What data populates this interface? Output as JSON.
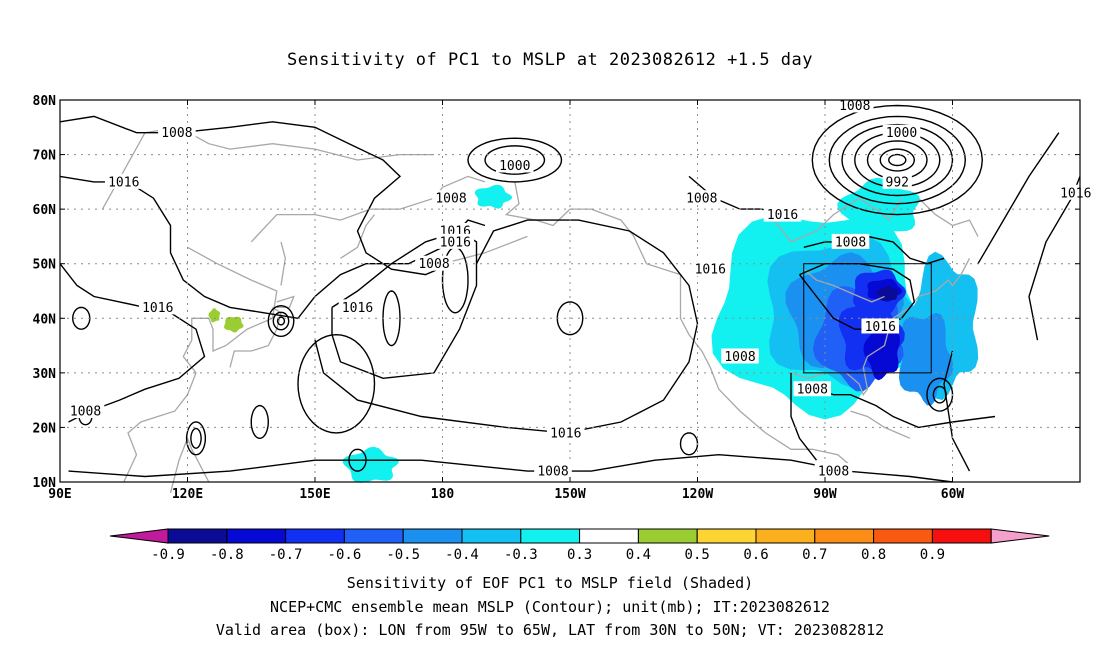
{
  "title": "Sensitivity of PC1 to MSLP at 2023082612 +1.5 day",
  "map": {
    "lon_range": [
      "90E",
      "30W"
    ],
    "lat_range": [
      "10N",
      "80N"
    ],
    "lat_ticks": [
      {
        "label": "80N",
        "value": 80
      },
      {
        "label": "70N",
        "value": 70
      },
      {
        "label": "60N",
        "value": 60
      },
      {
        "label": "50N",
        "value": 50
      },
      {
        "label": "40N",
        "value": 40
      },
      {
        "label": "30N",
        "value": 30
      },
      {
        "label": "20N",
        "value": 20
      },
      {
        "label": "10N",
        "value": 10
      }
    ],
    "lon_ticks": [
      {
        "label": "90E",
        "value": 90
      },
      {
        "label": "120E",
        "value": 120
      },
      {
        "label": "150E",
        "value": 150
      },
      {
        "label": "180",
        "value": 180
      },
      {
        "label": "150W",
        "value": 210
      },
      {
        "label": "120W",
        "value": 240
      },
      {
        "label": "90W",
        "value": 270
      },
      {
        "label": "60W",
        "value": 300
      }
    ],
    "contour_labels": [
      {
        "text": "1008",
        "lon": 117.5,
        "lat": 74
      },
      {
        "text": "1016",
        "lon": 105,
        "lat": 65
      },
      {
        "text": "1016",
        "lon": 113,
        "lat": 42
      },
      {
        "text": "1008",
        "lon": 96,
        "lat": 23
      },
      {
        "text": "1000",
        "lon": 197,
        "lat": 68
      },
      {
        "text": "1008",
        "lon": 182,
        "lat": 62
      },
      {
        "text": "1008",
        "lon": 178,
        "lat": 50
      },
      {
        "text": "1016",
        "lon": 183,
        "lat": 56
      },
      {
        "text": "1016",
        "lon": 183,
        "lat": 54
      },
      {
        "text": "1016",
        "lon": 160,
        "lat": 42
      },
      {
        "text": "1008",
        "lon": 241,
        "lat": 62
      },
      {
        "text": "1016",
        "lon": 260,
        "lat": 59
      },
      {
        "text": "1016",
        "lon": 243,
        "lat": 49
      },
      {
        "text": "1008",
        "lon": 250,
        "lat": 33
      },
      {
        "text": "1016",
        "lon": 209,
        "lat": 19
      },
      {
        "text": "1008",
        "lon": 206,
        "lat": 12
      },
      {
        "text": "1008",
        "lon": 277,
        "lat": 79
      },
      {
        "text": "1000",
        "lon": 288,
        "lat": 74
      },
      {
        "text": "992",
        "lon": 287,
        "lat": 65
      },
      {
        "text": "1016",
        "lon": 329,
        "lat": 63
      },
      {
        "text": "1008",
        "lon": 276,
        "lat": 54
      },
      {
        "text": "1016",
        "lon": 283,
        "lat": 38.5
      },
      {
        "text": "1008",
        "lon": 267,
        "lat": 27
      },
      {
        "text": "1008",
        "lon": 272,
        "lat": 12
      }
    ],
    "valid_box": {
      "lon_from": 265,
      "lon_to": 295,
      "lat_from": 30,
      "lat_to": 50
    }
  },
  "colorbar": {
    "labels": [
      "-0.9",
      "-0.8",
      "-0.7",
      "-0.6",
      "-0.5",
      "-0.4",
      "-0.3",
      "0.3",
      "0.4",
      "0.5",
      "0.6",
      "0.7",
      "0.8",
      "0.9"
    ],
    "colors": [
      "#0b0c96",
      "#0608d4",
      "#1230f2",
      "#2060f6",
      "#1a90f0",
      "#14bff2",
      "#12f0f0",
      "#ffffff",
      "#9acd32",
      "#fcd534",
      "#fbb01e",
      "#fb8c14",
      "#fa5a0f",
      "#f50f0f"
    ],
    "end_low_color": "#c21a9c",
    "end_high_color": "#f5a0cc"
  },
  "captions": {
    "line1": "Sensitivity of EOF PC1 to MSLP field (Shaded)",
    "line2": "NCEP+CMC ensemble mean MSLP (Contour); unit(mb); IT:2023082612",
    "line3": "Valid area (box): LON from 95W to 65W, LAT from 30N to 50N; VT: 2023082812"
  }
}
